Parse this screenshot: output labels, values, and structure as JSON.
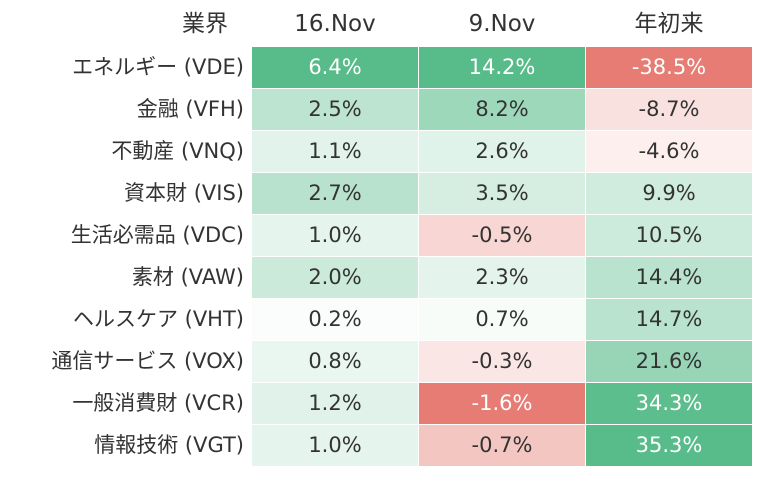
{
  "chart_data": {
    "type": "heatmap",
    "corner_label": "業界",
    "columns": [
      "16.Nov",
      "9.Nov",
      "年初来"
    ],
    "rows": [
      {
        "label": "エネルギー (VDE)",
        "values": [
          6.4,
          14.2,
          -38.5
        ],
        "display": [
          "6.4%",
          "14.2%",
          "-38.5%"
        ]
      },
      {
        "label": "金融 (VFH)",
        "values": [
          2.5,
          8.2,
          -8.7
        ],
        "display": [
          "2.5%",
          "8.2%",
          "-8.7%"
        ]
      },
      {
        "label": "不動産 (VNQ)",
        "values": [
          1.1,
          2.6,
          -4.6
        ],
        "display": [
          "1.1%",
          "2.6%",
          "-4.6%"
        ]
      },
      {
        "label": "資本財 (VIS)",
        "values": [
          2.7,
          3.5,
          9.9
        ],
        "display": [
          "2.7%",
          "3.5%",
          "9.9%"
        ]
      },
      {
        "label": "生活必需品 (VDC)",
        "values": [
          1.0,
          -0.5,
          10.5
        ],
        "display": [
          "1.0%",
          "-0.5%",
          "10.5%"
        ]
      },
      {
        "label": "素材 (VAW)",
        "values": [
          2.0,
          2.3,
          14.4
        ],
        "display": [
          "2.0%",
          "2.3%",
          "14.4%"
        ]
      },
      {
        "label": "ヘルスケア (VHT)",
        "values": [
          0.2,
          0.7,
          14.7
        ],
        "display": [
          "0.2%",
          "0.7%",
          "14.7%"
        ]
      },
      {
        "label": "通信サービス (VOX)",
        "values": [
          0.8,
          -0.3,
          21.6
        ],
        "display": [
          "0.8%",
          "-0.3%",
          "21.6%"
        ]
      },
      {
        "label": "一般消費財 (VCR)",
        "values": [
          1.2,
          -1.6,
          34.3
        ],
        "display": [
          "1.2%",
          "-1.6%",
          "34.3%"
        ]
      },
      {
        "label": "情報技術 (VGT)",
        "values": [
          1.0,
          -0.7,
          35.3
        ],
        "display": [
          "1.0%",
          "-0.7%",
          "35.3%"
        ]
      }
    ],
    "color_scale": "per-column diverging: green positive, red negative",
    "colors": {
      "positive": "#57bb8a",
      "negative": "#e67c73",
      "neutral": "#ffffff",
      "dark_text": "#333333",
      "light_text": "#ffffff"
    }
  }
}
